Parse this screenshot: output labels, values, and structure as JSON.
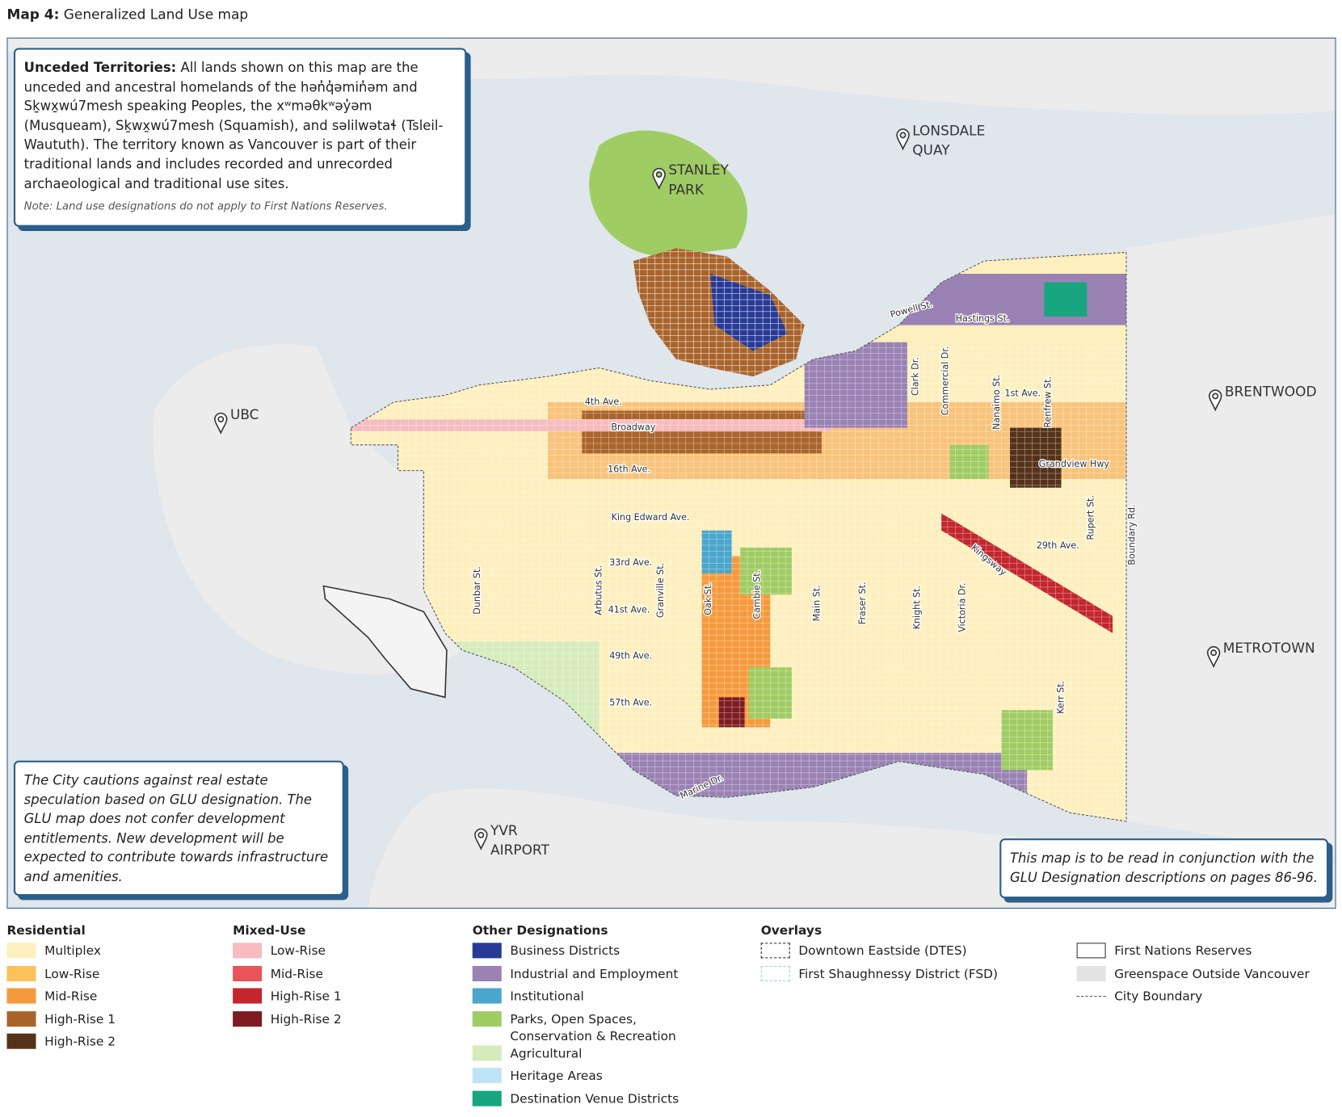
{
  "header": {
    "label": "Map 4:",
    "title": "Generalized Land Use map"
  },
  "notes": {
    "unceded": {
      "heading": "Unceded Territories:",
      "text": "All lands shown on this map are the unceded and ancestral homelands of the hən̓q̓əmin̓əm and Sḵwx̱wú7mesh speaking Peoples, the xʷməθkʷəy̓əm (Musqueam), Sḵwx̱wú7mesh (Squamish), and səlilwətaɬ (Tsleil-Waututh). The territory known as Vancouver is part of their traditional lands and includes recorded and unrecorded archaeological and traditional use sites.",
      "note": "Note: Land use designations do not apply to First Nations Reserves."
    },
    "caution": "The City cautions against real estate speculation based on GLU designation. The GLU map does not confer development entitlements. New development will be expected to contribute towards infrastructure and amenities.",
    "reading": "This map is to be read in conjunction with the GLU Designation descriptions on pages 86-96."
  },
  "places": [
    "STANLEY PARK",
    "LONSDALE QUAY",
    "UBC",
    "BRENTWOOD",
    "METROTOWN",
    "YVR AIRPORT"
  ],
  "streets": [
    "Powell St.",
    "Hastings St.",
    "1st Ave.",
    "Grandview Hwy",
    "4th Ave.",
    "Broadway",
    "16th Ave.",
    "King Edward Ave.",
    "33rd Ave.",
    "41st Ave.",
    "49th Ave.",
    "57th Ave.",
    "29th Ave.",
    "Clark Dr.",
    "Commercial Dr.",
    "Nanaimo St.",
    "Renfrew St.",
    "Rupert St.",
    "Boundary Rd.",
    "Kingsway",
    "Dunbar St.",
    "Arbutus St.",
    "Granville St.",
    "Oak St.",
    "Cambie St.",
    "Main St.",
    "Fraser St.",
    "Knight St.",
    "Victoria Dr.",
    "Kerr St.",
    "Marine Dr."
  ],
  "legend": [
    {
      "title": "Residential",
      "items": [
        {
          "label": "Multiplex",
          "color": "#fdefbe"
        },
        {
          "label": "Low-Rise",
          "color": "#fbc25a"
        },
        {
          "label": "Mid-Rise",
          "color": "#f59a3c"
        },
        {
          "label": "High-Rise 1",
          "color": "#a9642b"
        },
        {
          "label": "High-Rise 2",
          "color": "#55331a"
        }
      ]
    },
    {
      "title": "Mixed-Use",
      "items": [
        {
          "label": "Low-Rise",
          "color": "#f6bcc0"
        },
        {
          "label": "Mid-Rise",
          "color": "#e9535a"
        },
        {
          "label": "High-Rise 1",
          "color": "#c4262e"
        },
        {
          "label": "High-Rise 2",
          "color": "#7e1c22"
        }
      ]
    },
    {
      "title": "Other Designations",
      "items": [
        {
          "label": "Business Districts",
          "color": "#273a96"
        },
        {
          "label": "Industrial and Employment",
          "color": "#9a82b5"
        },
        {
          "label": "Institutional",
          "color": "#4aa6cc"
        },
        {
          "label": "Parks, Open Spaces, Conservation & Recreation",
          "color": "#a0cc64"
        },
        {
          "label": "Agricultural",
          "color": "#d6ebbb"
        },
        {
          "label": "Heritage Areas",
          "color": "#bfe4f6"
        },
        {
          "label": "Destination Venue Districts",
          "color": "#17a680"
        }
      ]
    },
    {
      "title": "Overlays",
      "items": [
        {
          "label": "Downtown Eastside (DTES)",
          "style": "dashed-black"
        },
        {
          "label": "First Shaughnessy District (FSD)",
          "style": "dashed-blue"
        }
      ]
    },
    {
      "items": [
        {
          "label": "First Nations Reserves",
          "style": "outline"
        },
        {
          "label": "Greenspace Outside Vancouver",
          "color": "#e3e3e3"
        },
        {
          "label": "City Boundary",
          "style": "dashed-line"
        }
      ]
    }
  ]
}
